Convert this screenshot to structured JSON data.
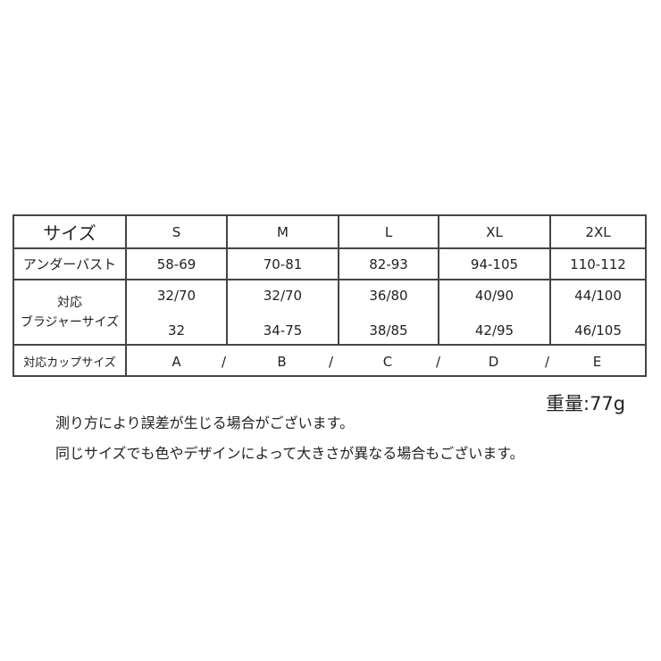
{
  "table": {
    "header": {
      "label": "サイズ",
      "sizes": [
        "S",
        "M",
        "L",
        "XL",
        "2XL"
      ]
    },
    "under_bust": {
      "label": "アンダーバスト",
      "values": [
        "58-69",
        "70-81",
        "82-93",
        "94-105",
        "110-112"
      ]
    },
    "bra_size": {
      "label_line1": "対応",
      "label_line2": "ブラジャーサイズ",
      "values_top": [
        "32/70",
        "32/70",
        "36/80",
        "40/90",
        "44/100"
      ],
      "values_bottom": [
        "32",
        "34-75",
        "38/85",
        "42/95",
        "46/105"
      ]
    },
    "cup_size": {
      "label": "対応カップサイズ",
      "values": [
        "A",
        "B",
        "C",
        "D",
        "E"
      ],
      "separator": "/"
    }
  },
  "weight": "重量:77g",
  "notes": [
    "測り方により誤差が生じる場合がございます。",
    "同じサイズでも色やデザインによって大きさが異なる場合もございます。"
  ]
}
